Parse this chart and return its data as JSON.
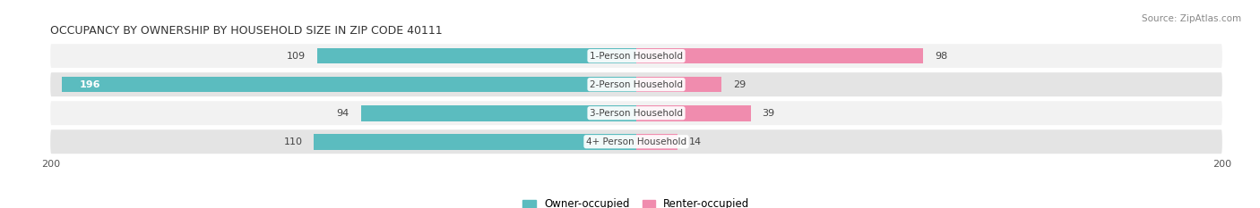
{
  "title": "OCCUPANCY BY OWNERSHIP BY HOUSEHOLD SIZE IN ZIP CODE 40111",
  "source": "Source: ZipAtlas.com",
  "categories": [
    "1-Person Household",
    "2-Person Household",
    "3-Person Household",
    "4+ Person Household"
  ],
  "owner_values": [
    109,
    196,
    94,
    110
  ],
  "renter_values": [
    98,
    29,
    39,
    14
  ],
  "owner_color": "#5bbcbf",
  "renter_color": "#f08cae",
  "xlim": [
    -200,
    200
  ],
  "bar_height": 0.55,
  "row_bg_light": "#f2f2f2",
  "row_bg_dark": "#e4e4e4",
  "legend_owner": "Owner-occupied",
  "legend_renter": "Renter-occupied",
  "figsize": [
    14.06,
    2.33
  ],
  "dpi": 100
}
